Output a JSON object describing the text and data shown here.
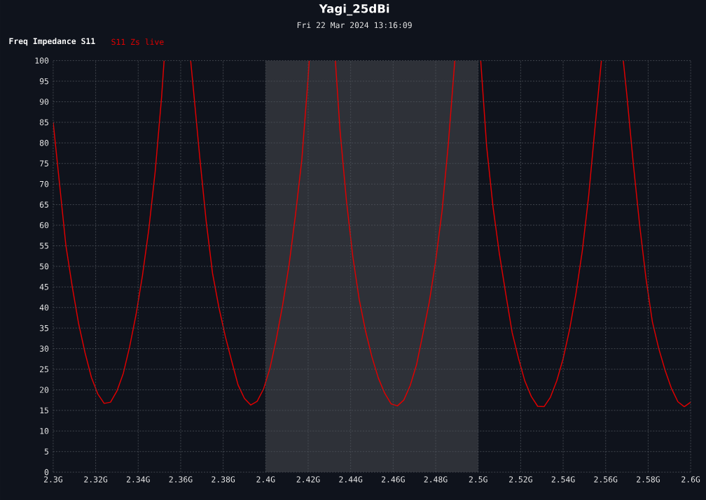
{
  "chart_data": {
    "type": "line",
    "title": "Yagi_25dBi",
    "subtitle": "Fri 22 Mar 2024 13:16:09",
    "legend_title": "Freq Impedance S11",
    "legend": "top left",
    "grid": true,
    "xlim": [
      2.3,
      2.6
    ],
    "xticks": [
      {
        "value": 2.3,
        "label": "2.3G"
      },
      {
        "value": 2.32,
        "label": "2.32G"
      },
      {
        "value": 2.34,
        "label": "2.34G"
      },
      {
        "value": 2.36,
        "label": "2.36G"
      },
      {
        "value": 2.38,
        "label": "2.38G"
      },
      {
        "value": 2.4,
        "label": "2.4G"
      },
      {
        "value": 2.42,
        "label": "2.42G"
      },
      {
        "value": 2.44,
        "label": "2.44G"
      },
      {
        "value": 2.46,
        "label": "2.46G"
      },
      {
        "value": 2.48,
        "label": "2.48G"
      },
      {
        "value": 2.5,
        "label": "2.5G"
      },
      {
        "value": 2.52,
        "label": "2.52G"
      },
      {
        "value": 2.54,
        "label": "2.54G"
      },
      {
        "value": 2.56,
        "label": "2.56G"
      },
      {
        "value": 2.58,
        "label": "2.58G"
      },
      {
        "value": 2.6,
        "label": "2.6G"
      }
    ],
    "ylim": [
      0,
      100
    ],
    "yticks": [
      0,
      5,
      10,
      15,
      20,
      25,
      30,
      35,
      40,
      45,
      50,
      55,
      60,
      65,
      70,
      75,
      80,
      85,
      90,
      95,
      100
    ],
    "bands": [
      {
        "axis": "x",
        "from": 2.4,
        "to": 2.5,
        "color": "#2e3138"
      }
    ],
    "series": [
      {
        "name": "S11 Zs live",
        "color": "#e00000",
        "x": [
          2.3,
          2.303,
          2.306,
          2.309,
          2.312,
          2.315,
          2.318,
          2.321,
          2.324,
          2.327,
          2.33,
          2.333,
          2.336,
          2.339,
          2.342,
          2.345,
          2.348,
          2.351,
          2.3522,
          2.358,
          2.3647,
          2.366,
          2.369,
          2.372,
          2.375,
          2.378,
          2.381,
          2.384,
          2.387,
          2.39,
          2.393,
          2.396,
          2.399,
          2.402,
          2.405,
          2.408,
          2.411,
          2.414,
          2.417,
          2.42,
          2.4205,
          2.427,
          2.4328,
          2.435,
          2.438,
          2.441,
          2.444,
          2.447,
          2.45,
          2.453,
          2.456,
          2.459,
          2.462,
          2.465,
          2.468,
          2.471,
          2.474,
          2.477,
          2.48,
          2.483,
          2.486,
          2.489,
          2.495,
          2.5012,
          2.504,
          2.507,
          2.51,
          2.513,
          2.516,
          2.519,
          2.522,
          2.525,
          2.528,
          2.531,
          2.534,
          2.537,
          2.54,
          2.543,
          2.546,
          2.549,
          2.552,
          2.555,
          2.558,
          2.563,
          2.5683,
          2.57,
          2.573,
          2.576,
          2.579,
          2.582,
          2.585,
          2.588,
          2.591,
          2.594,
          2.597,
          2.6
        ],
        "values": [
          85,
          70,
          55,
          45,
          36,
          29,
          23,
          19,
          16.7,
          17,
          19.7,
          24,
          30.5,
          38.3,
          47.7,
          59,
          73,
          91,
          100,
          null,
          100,
          93,
          76.4,
          61,
          48.3,
          40,
          33,
          27,
          21.2,
          17.9,
          16.3,
          17.2,
          20.2,
          25.2,
          32.3,
          40.6,
          50.3,
          62.4,
          75.8,
          96,
          100,
          null,
          100,
          83,
          66,
          52.4,
          42,
          34.3,
          28,
          22.9,
          19.2,
          16.6,
          16.1,
          17.5,
          21,
          26.1,
          33.6,
          41.3,
          51.3,
          63.4,
          80,
          100,
          null,
          100,
          79.1,
          64.4,
          53,
          43.3,
          33.9,
          27.6,
          22.1,
          18.4,
          16,
          15.9,
          18.2,
          22.2,
          27.6,
          34.6,
          43.3,
          53.7,
          67.1,
          83.8,
          100,
          null,
          100,
          91.5,
          75,
          60,
          47,
          36.5,
          30,
          24.7,
          20.3,
          17.1,
          15.9,
          17
        ]
      }
    ]
  }
}
